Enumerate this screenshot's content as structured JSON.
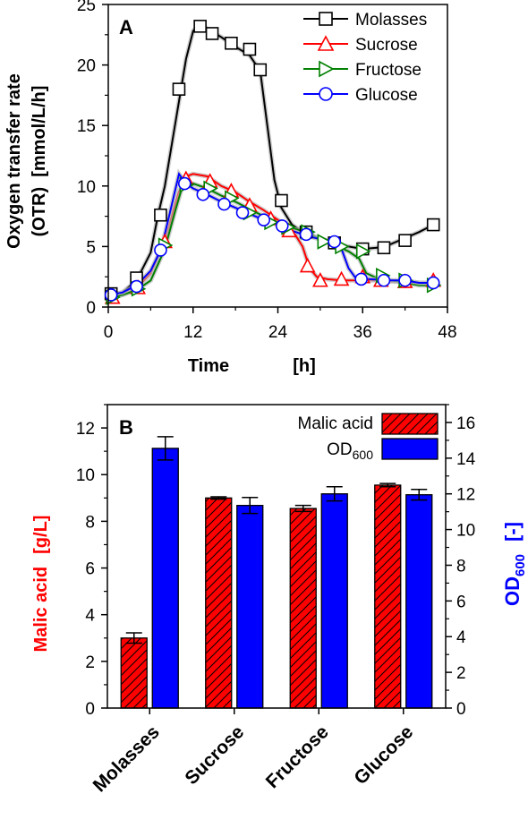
{
  "chart_data": [
    {
      "panel": "A",
      "type": "line",
      "xlabel_main": "Time",
      "xlabel_unit": "[h]",
      "ylabel_line1": "Oxygen transfer rate",
      "ylabel_line2": "(OTR)  [mmol/L/h]",
      "xlim": [
        0,
        48
      ],
      "ylim": [
        0,
        25
      ],
      "xticks": [
        0,
        12,
        24,
        36,
        48
      ],
      "yticks": [
        0,
        5,
        10,
        15,
        20,
        25
      ],
      "legend_position": "top-right",
      "series": [
        {
          "name": "Molasses",
          "color": "#000000",
          "marker": "square",
          "line": [
            [
              0,
              1.0
            ],
            [
              2,
              1.2
            ],
            [
              4,
              2.2
            ],
            [
              6,
              4.5
            ],
            [
              7,
              7.5
            ],
            [
              8,
              10
            ],
            [
              9,
              13.5
            ],
            [
              10,
              17
            ],
            [
              11,
              20.5
            ],
            [
              12,
              22.8
            ],
            [
              13,
              23.5
            ],
            [
              14,
              23
            ],
            [
              16,
              22.3
            ],
            [
              18,
              21.5
            ],
            [
              20,
              20.8
            ],
            [
              21.5,
              19.5
            ],
            [
              22.5,
              15
            ],
            [
              23.5,
              10.5
            ],
            [
              24.5,
              8.2
            ],
            [
              26,
              6.8
            ],
            [
              28,
              6.0
            ],
            [
              30,
              5.6
            ],
            [
              32,
              5.2
            ],
            [
              34,
              5.0
            ],
            [
              36,
              4.8
            ],
            [
              38,
              4.9
            ],
            [
              40,
              5.2
            ],
            [
              42,
              5.7
            ],
            [
              44,
              6.2
            ],
            [
              46,
              6.8
            ]
          ],
          "markers": [
            [
              0.4,
              1.1
            ],
            [
              4,
              2.4
            ],
            [
              7.4,
              7.6
            ],
            [
              10,
              18
            ],
            [
              13,
              23.2
            ],
            [
              14.7,
              22.6
            ],
            [
              17.4,
              21.8
            ],
            [
              20,
              21.3
            ],
            [
              21.5,
              19.6
            ],
            [
              24.5,
              8.8
            ],
            [
              28,
              6.2
            ],
            [
              32,
              5.3
            ],
            [
              36,
              4.8
            ],
            [
              39,
              4.9
            ],
            [
              42,
              5.5
            ],
            [
              46,
              6.8
            ]
          ]
        },
        {
          "name": "Sucrose",
          "color": "#ff0000",
          "marker": "triangle-up",
          "line": [
            [
              0,
              0.8
            ],
            [
              2,
              1.0
            ],
            [
              4,
              1.6
            ],
            [
              6,
              2.8
            ],
            [
              8,
              5.5
            ],
            [
              10,
              9.5
            ],
            [
              11,
              10.8
            ],
            [
              12,
              11.0
            ],
            [
              14,
              10.8
            ],
            [
              16,
              10.0
            ],
            [
              18,
              9.5
            ],
            [
              20,
              8.7
            ],
            [
              22,
              8.0
            ],
            [
              24,
              7.2
            ],
            [
              26,
              6.4
            ],
            [
              27.5,
              5.0
            ],
            [
              28.5,
              3.2
            ],
            [
              29.5,
              2.5
            ],
            [
              31,
              2.3
            ],
            [
              33,
              2.2
            ],
            [
              36,
              2.2
            ],
            [
              38,
              2.2
            ],
            [
              40,
              2.1
            ],
            [
              42,
              2.1
            ],
            [
              44,
              2.0
            ],
            [
              46,
              2.0
            ]
          ],
          "markers": [
            [
              0.6,
              0.8
            ],
            [
              4.2,
              1.6
            ],
            [
              8,
              5.4
            ],
            [
              11,
              10.6
            ],
            [
              14.4,
              10.4
            ],
            [
              17.4,
              9.6
            ],
            [
              20,
              8.4
            ],
            [
              23,
              7.3
            ],
            [
              25.6,
              6.3
            ],
            [
              28.2,
              3.4
            ],
            [
              30,
              2.2
            ],
            [
              33,
              2.3
            ],
            [
              36,
              2.5
            ],
            [
              38.6,
              2.2
            ],
            [
              42,
              2.1
            ],
            [
              46,
              2.2
            ]
          ]
        },
        {
          "name": "Fructose",
          "color": "#008000",
          "marker": "triangle-right",
          "line": [
            [
              0,
              0.8
            ],
            [
              2,
              1.0
            ],
            [
              4,
              1.4
            ],
            [
              6,
              2.2
            ],
            [
              8,
              4.8
            ],
            [
              9.5,
              8.0
            ],
            [
              10.5,
              10.0
            ],
            [
              12,
              10.2
            ],
            [
              14,
              9.8
            ],
            [
              16,
              9.2
            ],
            [
              18,
              8.7
            ],
            [
              20,
              8.1
            ],
            [
              22,
              7.5
            ],
            [
              24,
              6.9
            ],
            [
              26,
              6.5
            ],
            [
              28,
              6.2
            ],
            [
              30,
              5.6
            ],
            [
              32,
              5.1
            ],
            [
              34,
              4.6
            ],
            [
              35.5,
              4.0
            ],
            [
              36.5,
              2.8
            ],
            [
              38,
              2.4
            ],
            [
              40,
              2.2
            ],
            [
              42,
              2.0
            ],
            [
              44,
              1.8
            ],
            [
              46,
              1.8
            ]
          ],
          "markers": [
            [
              0.6,
              0.8
            ],
            [
              4.2,
              1.5
            ],
            [
              8,
              5.1
            ],
            [
              11,
              10.1
            ],
            [
              14.4,
              9.8
            ],
            [
              17.4,
              9.0
            ],
            [
              20,
              7.8
            ],
            [
              23,
              7.0
            ],
            [
              25.4,
              6.6
            ],
            [
              28.2,
              6.2
            ],
            [
              30.5,
              5.4
            ],
            [
              33,
              5.0
            ],
            [
              36,
              4.6
            ],
            [
              38.8,
              2.6
            ],
            [
              42,
              2.2
            ],
            [
              46,
              1.8
            ]
          ]
        },
        {
          "name": "Glucose",
          "color": "#0000ff",
          "marker": "circle",
          "line": [
            [
              0,
              1.0
            ],
            [
              2,
              1.2
            ],
            [
              4,
              1.8
            ],
            [
              6,
              3.0
            ],
            [
              7.5,
              4.8
            ],
            [
              9,
              8.5
            ],
            [
              10,
              11.0
            ],
            [
              11,
              10.2
            ],
            [
              12,
              9.8
            ],
            [
              14,
              9.3
            ],
            [
              16,
              8.7
            ],
            [
              18,
              8.2
            ],
            [
              20,
              7.7
            ],
            [
              22,
              7.2
            ],
            [
              24,
              6.8
            ],
            [
              26,
              6.3
            ],
            [
              28,
              5.9
            ],
            [
              30,
              5.6
            ],
            [
              32,
              5.4
            ],
            [
              33,
              4.8
            ],
            [
              34,
              3.2
            ],
            [
              35,
              2.4
            ],
            [
              37,
              2.3
            ],
            [
              40,
              2.2
            ],
            [
              42,
              2.2
            ],
            [
              44,
              2.0
            ],
            [
              46,
              2.0
            ]
          ],
          "markers": [
            [
              0.4,
              1.0
            ],
            [
              4,
              1.7
            ],
            [
              7.4,
              4.7
            ],
            [
              10.8,
              10.2
            ],
            [
              13.4,
              9.3
            ],
            [
              16.4,
              8.5
            ],
            [
              19,
              7.8
            ],
            [
              22,
              7.2
            ],
            [
              24.6,
              6.7
            ],
            [
              28,
              6.0
            ],
            [
              32,
              5.4
            ],
            [
              35.8,
              2.3
            ],
            [
              39,
              2.2
            ],
            [
              42,
              2.2
            ],
            [
              46,
              2.0
            ]
          ]
        }
      ]
    },
    {
      "panel": "B",
      "type": "bar",
      "categories": [
        "Molasses",
        "Sucrose",
        "Fructose",
        "Glucose"
      ],
      "ylabel_left_main": "Malic acid",
      "ylabel_left_unit": "[g/L]",
      "ylabel_right_main": "OD",
      "ylabel_right_sub": "600",
      "ylabel_right_unit": "[-]",
      "ylim_left": [
        0,
        13
      ],
      "ylim_right": [
        0,
        17
      ],
      "yticks_left": [
        0,
        2,
        4,
        6,
        8,
        10,
        12
      ],
      "yticks_right": [
        0,
        2,
        4,
        6,
        8,
        10,
        12,
        14,
        16
      ],
      "legend_position": "top-right",
      "series": [
        {
          "name": "Malic acid",
          "axis": "left",
          "color": "#ff0000",
          "pattern": "hatch",
          "values": [
            3.0,
            9.0,
            8.55,
            9.55
          ],
          "errors": [
            0.22,
            0.05,
            0.13,
            0.07
          ]
        },
        {
          "name": "OD",
          "name_sub": "600",
          "axis": "right",
          "color": "#0000ff",
          "values": [
            14.55,
            11.35,
            12.0,
            11.95
          ],
          "errors": [
            0.65,
            0.45,
            0.4,
            0.3
          ]
        }
      ]
    }
  ]
}
